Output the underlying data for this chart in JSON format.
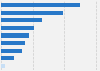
{
  "values": [
    4990,
    3900,
    2600,
    2100,
    1750,
    1550,
    1350,
    850,
    300
  ],
  "bar_colors": [
    "#2878c8",
    "#2878c8",
    "#2878c8",
    "#2878c8",
    "#2878c8",
    "#2878c8",
    "#2878c8",
    "#2878c8",
    "#c8dff5"
  ],
  "background_color": "#f2f2f2",
  "grid_color": "#cccccc",
  "xlim": [
    0,
    6200
  ],
  "figsize": [
    1.0,
    0.71
  ],
  "dpi": 100,
  "bar_height": 0.55,
  "grid_ticks": [
    0,
    2000,
    4000,
    6000
  ]
}
